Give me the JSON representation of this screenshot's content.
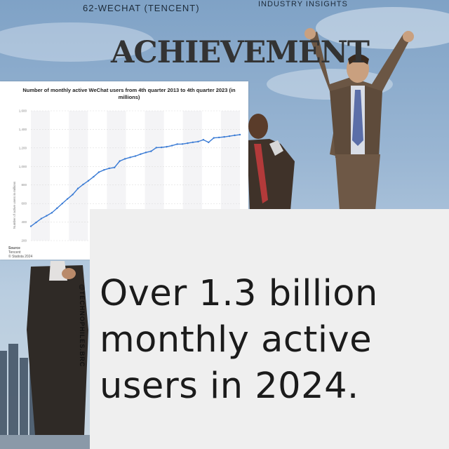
{
  "header": {
    "top_left": "62-WECHAT (TENCENT)",
    "top_right": "INDUSTRY INSIGHTS",
    "headline": "ACHIEVEMENT"
  },
  "caption": {
    "text": "Over 1.3 billion monthly active users in 2024."
  },
  "watermark": "@TECHNOPHILES.BRC",
  "colors": {
    "accent_line": "#3a7bd5",
    "panel": "#efefef",
    "text": "#1b1b1b"
  },
  "chart_data": {
    "type": "line",
    "title": "Number of monthly active WeChat users from 4th quarter 2013 to 4th quarter 2023 (in millions)",
    "ylabel": "Number of active users in millions",
    "source_lines": [
      "Source",
      "Tencent",
      "© Statista 2024"
    ],
    "ylim": [
      200,
      1600
    ],
    "yticks": [
      "200",
      "400",
      "600",
      "800",
      "1,000",
      "1,200",
      "1,400",
      "1,600"
    ],
    "grid": true,
    "series": [
      {
        "values": [
          355,
          396,
          438,
          468,
          500,
          549,
          600,
          650,
          697,
          762,
          806,
          846,
          889,
          938,
          963,
          980,
          989,
          1058,
          1082,
          1098,
          1112,
          1133,
          1151,
          1164,
          1203,
          1206,
          1213,
          1225,
          1241,
          1242,
          1251,
          1261,
          1268,
          1288,
          1260,
          1308,
          1313,
          1319,
          1327,
          1336,
          1343
        ]
      }
    ]
  }
}
